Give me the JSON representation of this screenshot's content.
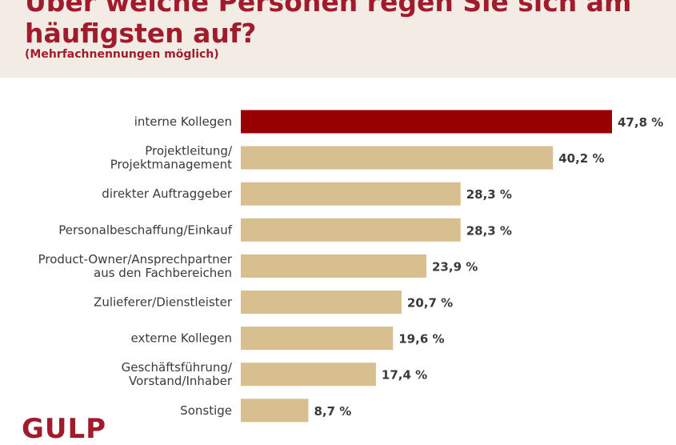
{
  "header": {
    "title_line1": "Über welche Personen regen Sie sich am",
    "title_line2": "häufigsten auf?",
    "subtitle": "(Mehrfachnennungen möglich)"
  },
  "logo": {
    "text": "GULP"
  },
  "colors": {
    "highlight_bar": "#990000",
    "bar": "#d7bf8f",
    "header_bg": "#f3ece4",
    "title": "#a01c2c"
  },
  "chart_data": {
    "type": "bar",
    "orientation": "horizontal",
    "categories": [
      [
        "interne Kollegen"
      ],
      [
        "Projektleitung/",
        "Projektmanagement"
      ],
      [
        "direkter Auftraggeber"
      ],
      [
        "Personalbeschaffung/Einkauf"
      ],
      [
        "Product-Owner/Ansprechpartner",
        "aus den Fachbereichen"
      ],
      [
        "Zulieferer/Dienstleister"
      ],
      [
        "externe Kollegen"
      ],
      [
        "Geschäftsführung/",
        "Vorstand/Inhaber"
      ],
      [
        "Sonstige"
      ]
    ],
    "values": [
      47.8,
      40.2,
      28.3,
      28.3,
      23.9,
      20.7,
      19.6,
      17.4,
      8.7
    ],
    "value_labels": [
      "47,8 %",
      "40,2 %",
      "28,3 %",
      "28,3 %",
      "23,9 %",
      "20,7 %",
      "19,6 %",
      "17,4 %",
      "8,7 %"
    ],
    "highlight_index": 0,
    "xlim": [
      0,
      47.8
    ],
    "grid": false,
    "legend": "none"
  }
}
